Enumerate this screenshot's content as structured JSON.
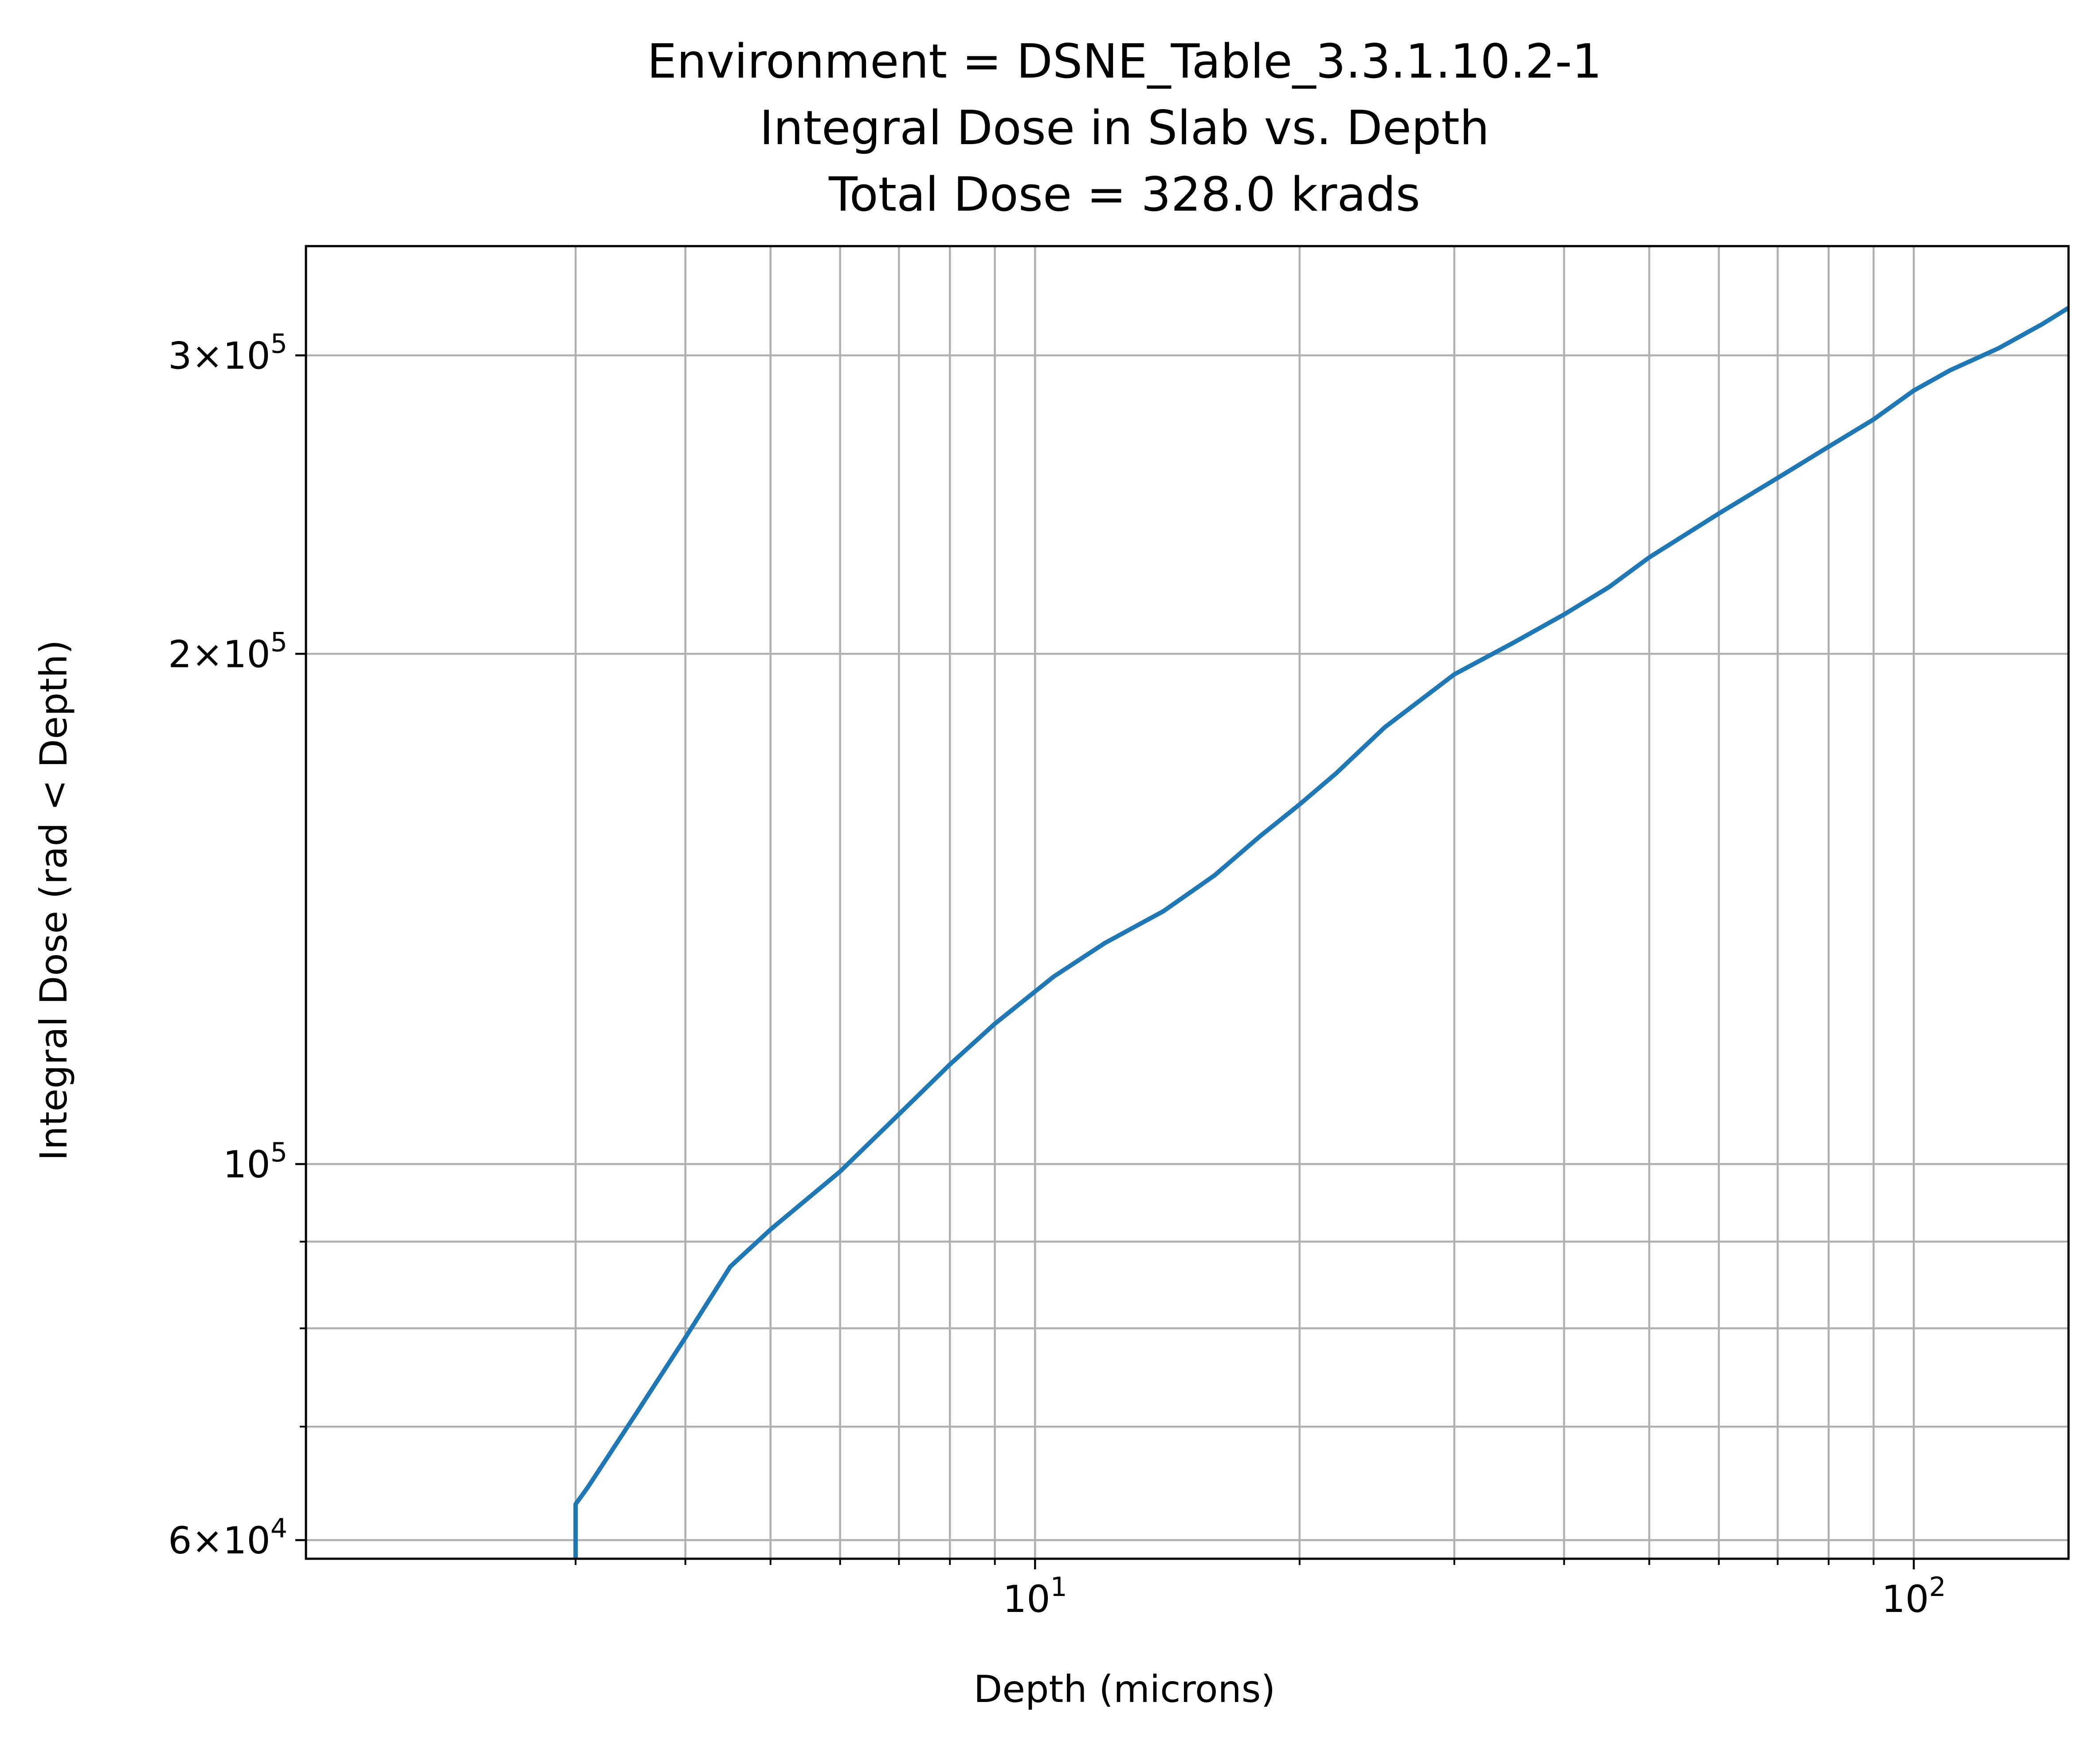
{
  "chart_data": {
    "type": "line",
    "title_lines": [
      "Environment = DSNE_Table_3.3.1.10.2-1",
      "Integral Dose in Slab vs. Depth",
      "Total Dose = 328.0 krads"
    ],
    "xlabel": "Depth (microns)",
    "ylabel": "Integral Dose (rad < Depth)",
    "x_scale": "log",
    "y_scale": "log",
    "xlim": [
      1.48,
      150
    ],
    "ylim": [
      58500,
      348000
    ],
    "grid": true,
    "grid_which": "both",
    "line_color": "#1f77b4",
    "x_ticks": [
      {
        "value": 10,
        "base": "10",
        "exp": "1"
      },
      {
        "value": 100,
        "base": "10",
        "exp": "2"
      }
    ],
    "y_ticks": [
      {
        "value": 60000,
        "mantissa": "6",
        "base": "10",
        "exp": "4"
      },
      {
        "value": 100000,
        "mantissa": "",
        "base": "10",
        "exp": "5"
      },
      {
        "value": 200000,
        "mantissa": "2",
        "base": "10",
        "exp": "5"
      },
      {
        "value": 300000,
        "mantissa": "3",
        "base": "10",
        "exp": "5"
      }
    ],
    "x_minor_grid": [
      3,
      4,
      5,
      6,
      7,
      8,
      9,
      20,
      30,
      40,
      50,
      60,
      70,
      80,
      90
    ],
    "y_minor_grid": [
      70000,
      80000,
      90000
    ],
    "series": [
      {
        "x": [
          3.0,
          3.0,
          3.1,
          3.5,
          4.0,
          4.5,
          5.0,
          6.0,
          7.0,
          8.0,
          9.0,
          10.5,
          12.0,
          14.0,
          16.0,
          18.0,
          20.0,
          22.0,
          25.0,
          30.0,
          35.0,
          40.0,
          45.0,
          50.0,
          60.0,
          70.0,
          80.0,
          90.0,
          100.0,
          110.0,
          125.0,
          140.0,
          150.0
        ],
        "y": [
          58500,
          63000,
          64500,
          71000,
          79000,
          87000,
          91500,
          99000,
          107000,
          114500,
          121000,
          129000,
          135000,
          141000,
          148000,
          156000,
          163000,
          170000,
          181000,
          194500,
          203000,
          211000,
          219000,
          228000,
          242000,
          254000,
          265000,
          275000,
          286000,
          294000,
          303000,
          313000,
          320000
        ]
      }
    ]
  }
}
